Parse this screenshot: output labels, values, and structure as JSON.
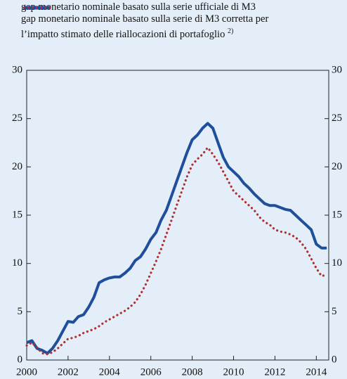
{
  "chart_data": {
    "type": "line",
    "x": [
      2000,
      2000.25,
      2000.5,
      2000.75,
      2001,
      2001.25,
      2001.5,
      2001.75,
      2002,
      2002.25,
      2002.5,
      2002.75,
      2003,
      2003.25,
      2003.5,
      2003.75,
      2004,
      2004.25,
      2004.5,
      2004.75,
      2005,
      2005.25,
      2005.5,
      2005.75,
      2006,
      2006.25,
      2006.5,
      2006.75,
      2007,
      2007.25,
      2007.5,
      2007.75,
      2008,
      2008.25,
      2008.5,
      2008.75,
      2009,
      2009.25,
      2009.5,
      2009.75,
      2010,
      2010.25,
      2010.5,
      2010.75,
      2011,
      2011.25,
      2011.5,
      2011.75,
      2012,
      2012.25,
      2012.5,
      2012.75,
      2013,
      2013.25,
      2013.5,
      2013.75,
      2014,
      2014.25,
      2014.5
    ],
    "series": [
      {
        "name": "gap monetario nominale basato sulla serie ufficiale di M3",
        "color": "#1f4e9c",
        "style": "solid",
        "values": [
          1.8,
          2.0,
          1.2,
          1.0,
          0.7,
          1.2,
          2.0,
          3.0,
          4.0,
          3.9,
          4.5,
          4.7,
          5.5,
          6.5,
          8.0,
          8.3,
          8.5,
          8.6,
          8.6,
          9.0,
          9.5,
          10.3,
          10.7,
          11.5,
          12.5,
          13.2,
          14.5,
          15.5,
          17.0,
          18.5,
          20.0,
          21.5,
          22.8,
          23.3,
          24.0,
          24.5,
          24.0,
          22.5,
          21.0,
          20.0,
          19.5,
          19.0,
          18.3,
          17.8,
          17.2,
          16.7,
          16.2,
          16.0,
          16.0,
          15.8,
          15.6,
          15.5,
          15.0,
          14.5,
          14.0,
          13.5,
          12.0,
          11.6,
          11.6
        ]
      },
      {
        "name": "gap monetario nominale basato sulla serie di M3 corretta per l’impatto stimato delle riallocazioni di portafoglio",
        "note": "2)",
        "color": "#b03030",
        "style": "dotted",
        "values": [
          1.5,
          1.8,
          1.3,
          0.7,
          0.6,
          0.8,
          1.2,
          1.7,
          2.2,
          2.3,
          2.5,
          2.8,
          3.0,
          3.2,
          3.5,
          3.9,
          4.2,
          4.5,
          4.8,
          5.1,
          5.5,
          6.0,
          6.8,
          7.8,
          9.0,
          10.2,
          11.5,
          13.0,
          14.5,
          16.0,
          17.5,
          19.0,
          20.2,
          20.8,
          21.3,
          22.0,
          21.3,
          20.5,
          19.5,
          18.5,
          17.5,
          17.0,
          16.5,
          16.0,
          15.5,
          14.8,
          14.3,
          14.0,
          13.5,
          13.3,
          13.2,
          13.0,
          12.7,
          12.2,
          11.5,
          10.5,
          9.5,
          8.7,
          8.8
        ]
      }
    ],
    "xlim": [
      2000,
      2014.6
    ],
    "xticks": [
      2000,
      2002,
      2004,
      2006,
      2008,
      2010,
      2012,
      2014
    ],
    "ylim": [
      0,
      30
    ],
    "yticks": [
      0,
      5,
      10,
      15,
      20,
      25,
      30
    ],
    "y2lim": [
      0,
      30
    ],
    "y2ticks": [
      0,
      5,
      10,
      15,
      20,
      25,
      30
    ],
    "legend": "top"
  }
}
